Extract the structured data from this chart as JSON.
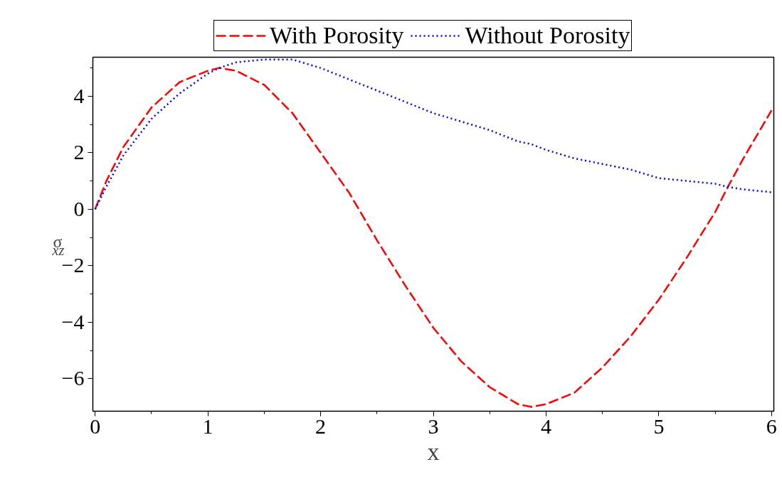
{
  "chart_data": {
    "type": "line",
    "xlabel": "x",
    "ylabel": "σ$_{xz}$",
    "x": [
      0,
      0.1,
      0.25,
      0.5,
      0.75,
      1.0,
      1.1,
      1.25,
      1.5,
      1.75,
      2.0,
      2.25,
      2.5,
      2.75,
      3.0,
      3.25,
      3.5,
      3.75,
      3.87,
      4.0,
      4.25,
      4.5,
      4.75,
      5.0,
      5.25,
      5.5,
      5.6,
      5.75,
      6.0
    ],
    "series": [
      {
        "name": "With Porosity",
        "color": "#ff0000",
        "line_style": "dashed",
        "values": [
          0,
          1.0,
          2.2,
          3.6,
          4.5,
          4.9,
          5.0,
          4.9,
          4.4,
          3.4,
          2.0,
          0.6,
          -1.1,
          -2.7,
          -4.2,
          -5.4,
          -6.3,
          -6.9,
          -7.0,
          -6.9,
          -6.5,
          -5.6,
          -4.5,
          -3.2,
          -1.7,
          -0.1,
          0.7,
          1.8,
          3.5
        ]
      },
      {
        "name": "Without Porosity",
        "color": "#0000ff",
        "line_style": "dotted",
        "values": [
          0,
          0.8,
          1.9,
          3.2,
          4.1,
          4.8,
          5.0,
          5.2,
          5.3,
          5.3,
          5.0,
          4.6,
          4.2,
          3.8,
          3.4,
          3.1,
          2.8,
          2.4,
          2.3,
          2.1,
          1.8,
          1.6,
          1.4,
          1.1,
          1.0,
          0.9,
          0.8,
          0.7,
          0.6
        ]
      }
    ],
    "xlim": [
      -0.02,
      6.02
    ],
    "ylim": [
      -7.15,
      5.38
    ],
    "xticks": [
      0,
      1,
      2,
      3,
      4,
      5,
      6
    ],
    "yticks": [
      {
        "value": -6,
        "label": "−6"
      },
      {
        "value": -4,
        "label": "−4"
      },
      {
        "value": -2,
        "label": "−2"
      },
      0,
      2,
      4
    ],
    "grid": false,
    "legend": "top",
    "marker": "none"
  }
}
